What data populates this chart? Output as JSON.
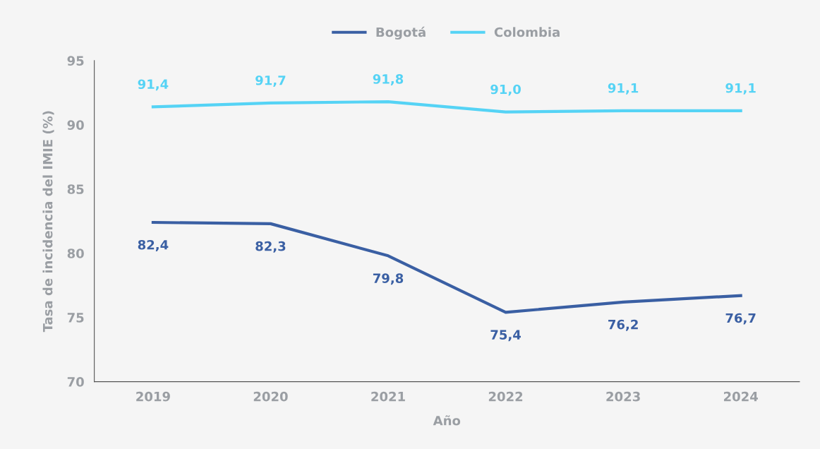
{
  "chart_data": {
    "type": "line",
    "xlabel": "Año",
    "ylabel": "Tasa de incidencia del IMIE (%)",
    "categories": [
      "2019",
      "2020",
      "2021",
      "2022",
      "2023",
      "2024"
    ],
    "series": [
      {
        "name": "Bogotá",
        "color": "#3a5fa3",
        "values": [
          82.4,
          82.3,
          79.8,
          75.4,
          76.2,
          76.7
        ],
        "value_labels": [
          "82,4",
          "82,3",
          "79,8",
          "75,4",
          "76,2",
          "76,7"
        ]
      },
      {
        "name": "Colombia",
        "color": "#55d3f5",
        "values": [
          91.4,
          91.7,
          91.8,
          91.0,
          91.1,
          91.1
        ],
        "value_labels": [
          "91,4",
          "91,7",
          "91,8",
          "91,0",
          "91,1",
          "91,1"
        ]
      }
    ],
    "ylim": [
      70,
      95
    ],
    "yticks": [
      70,
      75,
      80,
      85,
      90,
      95
    ],
    "grid": false,
    "legend": "top",
    "marker": "none",
    "line_style": "solid"
  }
}
